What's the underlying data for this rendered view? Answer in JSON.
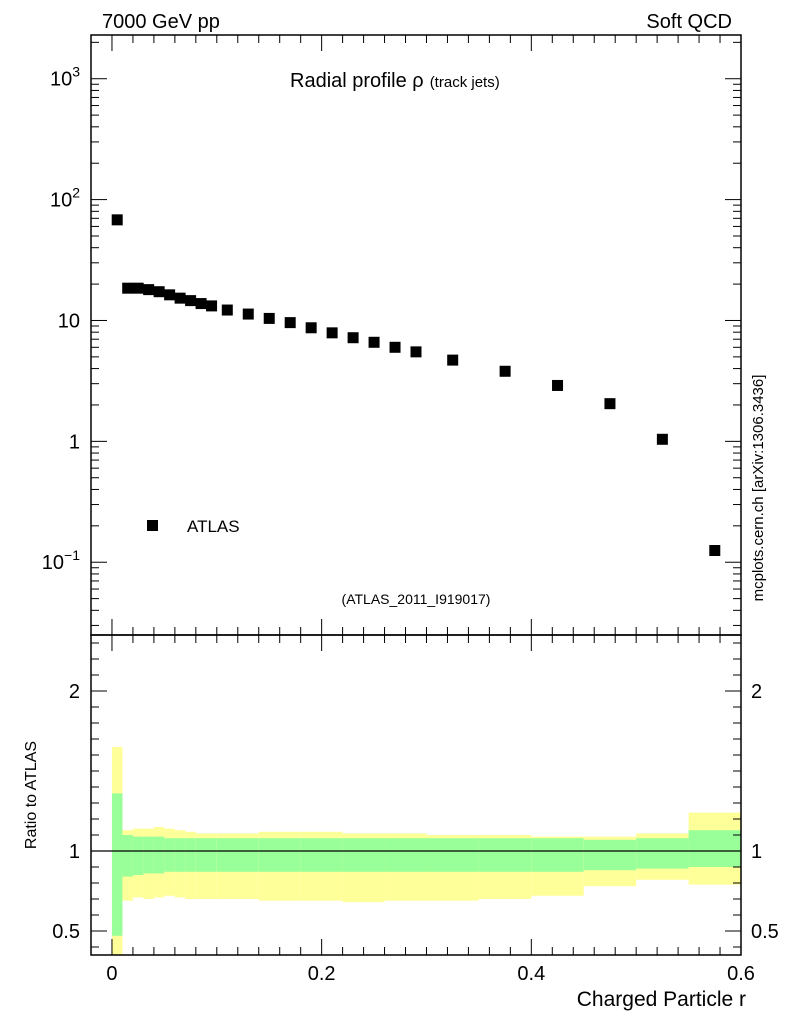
{
  "header": {
    "energy_label": "7000 GeV pp",
    "process_label": "Soft QCD",
    "side_label": "mcplots.cern.ch [arXiv:1306.3436]"
  },
  "colors": {
    "band_outer": "#ffff99",
    "band_inner": "#99ff99",
    "marker": "#000000",
    "watermark": "#999999"
  },
  "chart_data": [
    {
      "type": "scatter",
      "title_main": "Radial profile ",
      "title_symbol": "ρ",
      "title_sub": "(track jets)",
      "analysis_tag": "(ATLAS_2011_I919017)",
      "yscale": "log",
      "ylim": [
        0.025,
        2300
      ],
      "xlim": [
        -0.02,
        0.6
      ],
      "ytick_labels": [
        {
          "value": 1000,
          "base": "10",
          "exp": "3"
        },
        {
          "value": 100,
          "base": "10",
          "exp": "2"
        },
        {
          "value": 10,
          "text": "10"
        },
        {
          "value": 1,
          "text": "1"
        },
        {
          "value": 0.1,
          "base": "10",
          "exp": "−1"
        }
      ],
      "legend": {
        "label": "ATLAS",
        "position": "bottom-left"
      },
      "series": [
        {
          "name": "ATLAS",
          "x": [
            0.005,
            0.015,
            0.025,
            0.035,
            0.045,
            0.055,
            0.065,
            0.075,
            0.085,
            0.095,
            0.11,
            0.13,
            0.15,
            0.17,
            0.19,
            0.21,
            0.23,
            0.25,
            0.27,
            0.29,
            0.325,
            0.375,
            0.425,
            0.475,
            0.525,
            0.575
          ],
          "y": [
            68,
            18.5,
            18.5,
            18.0,
            17.3,
            16.3,
            15.3,
            14.6,
            13.8,
            13.2,
            12.2,
            11.3,
            10.4,
            9.6,
            8.7,
            7.9,
            7.2,
            6.6,
            6.0,
            5.5,
            4.7,
            3.8,
            2.9,
            2.05,
            1.04,
            0.125
          ]
        }
      ]
    },
    {
      "type": "area",
      "ylabel": "Ratio to ATLAS",
      "xlabel": "Charged Particle r",
      "ylim": [
        0.35,
        2.35
      ],
      "xlim": [
        -0.02,
        0.6
      ],
      "yticks": [
        0.5,
        1,
        2
      ],
      "ytick_labels": [
        "0.5",
        "1",
        "2"
      ],
      "xticks": [
        0,
        0.2,
        0.4,
        0.6
      ],
      "xtick_labels": [
        "0",
        "0.2",
        "0.4",
        "0.6"
      ],
      "reference_line": 1,
      "bins": [
        {
          "lo": 0.0,
          "hi": 0.01,
          "inner": [
            0.47,
            1.36
          ],
          "outer": [
            0.0,
            1.65
          ]
        },
        {
          "lo": 0.01,
          "hi": 0.02,
          "inner": [
            0.84,
            1.1
          ],
          "outer": [
            0.69,
            1.13
          ]
        },
        {
          "lo": 0.02,
          "hi": 0.03,
          "inner": [
            0.85,
            1.09
          ],
          "outer": [
            0.71,
            1.14
          ]
        },
        {
          "lo": 0.03,
          "hi": 0.04,
          "inner": [
            0.86,
            1.09
          ],
          "outer": [
            0.7,
            1.14
          ]
        },
        {
          "lo": 0.04,
          "hi": 0.05,
          "inner": [
            0.86,
            1.09
          ],
          "outer": [
            0.71,
            1.15
          ]
        },
        {
          "lo": 0.05,
          "hi": 0.06,
          "inner": [
            0.87,
            1.08
          ],
          "outer": [
            0.72,
            1.14
          ]
        },
        {
          "lo": 0.06,
          "hi": 0.07,
          "inner": [
            0.87,
            1.08
          ],
          "outer": [
            0.71,
            1.13
          ]
        },
        {
          "lo": 0.07,
          "hi": 0.08,
          "inner": [
            0.87,
            1.08
          ],
          "outer": [
            0.7,
            1.12
          ]
        },
        {
          "lo": 0.08,
          "hi": 0.1,
          "inner": [
            0.87,
            1.08
          ],
          "outer": [
            0.7,
            1.11
          ]
        },
        {
          "lo": 0.1,
          "hi": 0.14,
          "inner": [
            0.87,
            1.08
          ],
          "outer": [
            0.7,
            1.11
          ]
        },
        {
          "lo": 0.14,
          "hi": 0.18,
          "inner": [
            0.87,
            1.08
          ],
          "outer": [
            0.69,
            1.12
          ]
        },
        {
          "lo": 0.18,
          "hi": 0.22,
          "inner": [
            0.87,
            1.08
          ],
          "outer": [
            0.69,
            1.12
          ]
        },
        {
          "lo": 0.22,
          "hi": 0.26,
          "inner": [
            0.87,
            1.08
          ],
          "outer": [
            0.68,
            1.11
          ]
        },
        {
          "lo": 0.26,
          "hi": 0.3,
          "inner": [
            0.87,
            1.08
          ],
          "outer": [
            0.69,
            1.11
          ]
        },
        {
          "lo": 0.3,
          "hi": 0.35,
          "inner": [
            0.87,
            1.08
          ],
          "outer": [
            0.69,
            1.1
          ]
        },
        {
          "lo": 0.35,
          "hi": 0.4,
          "inner": [
            0.87,
            1.08
          ],
          "outer": [
            0.7,
            1.1
          ]
        },
        {
          "lo": 0.4,
          "hi": 0.45,
          "inner": [
            0.87,
            1.08
          ],
          "outer": [
            0.72,
            1.09
          ]
        },
        {
          "lo": 0.45,
          "hi": 0.5,
          "inner": [
            0.88,
            1.07
          ],
          "outer": [
            0.78,
            1.09
          ]
        },
        {
          "lo": 0.5,
          "hi": 0.55,
          "inner": [
            0.89,
            1.08
          ],
          "outer": [
            0.82,
            1.11
          ]
        },
        {
          "lo": 0.55,
          "hi": 0.6,
          "inner": [
            0.9,
            1.13
          ],
          "outer": [
            0.79,
            1.24
          ]
        }
      ]
    }
  ]
}
